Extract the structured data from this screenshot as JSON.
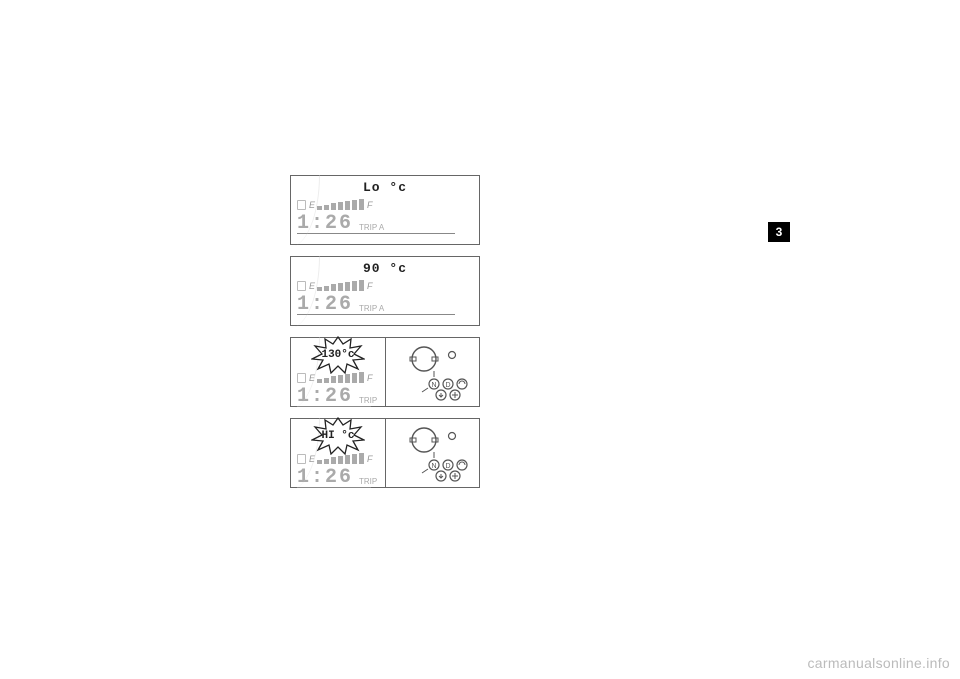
{
  "page_tab": "3",
  "watermark": "carmanualsonline.info",
  "panels": [
    {
      "temp_display": "Lo °c",
      "burst": false,
      "split": false,
      "fuel": {
        "E": "E",
        "F": "F",
        "segments": 7
      },
      "clock": "1:26",
      "trip": "TRIP A"
    },
    {
      "temp_display": "90 °c",
      "burst": false,
      "split": false,
      "fuel": {
        "E": "E",
        "F": "F",
        "segments": 7
      },
      "clock": "1:26",
      "trip": "TRIP A"
    },
    {
      "temp_display": "130°c",
      "burst": true,
      "split": true,
      "fuel": {
        "E": "E",
        "F": "F",
        "segments": 7
      },
      "clock": "1:26",
      "trip": "TRIP"
    },
    {
      "temp_display": "HI °c",
      "burst": true,
      "split": true,
      "fuel": {
        "E": "E",
        "F": "F",
        "segments": 7
      },
      "clock": "1:26",
      "trip": "TRIP"
    }
  ],
  "colors": {
    "border": "#666666",
    "muted": "#aaaaaa",
    "text": "#222222",
    "background": "#ffffff"
  }
}
